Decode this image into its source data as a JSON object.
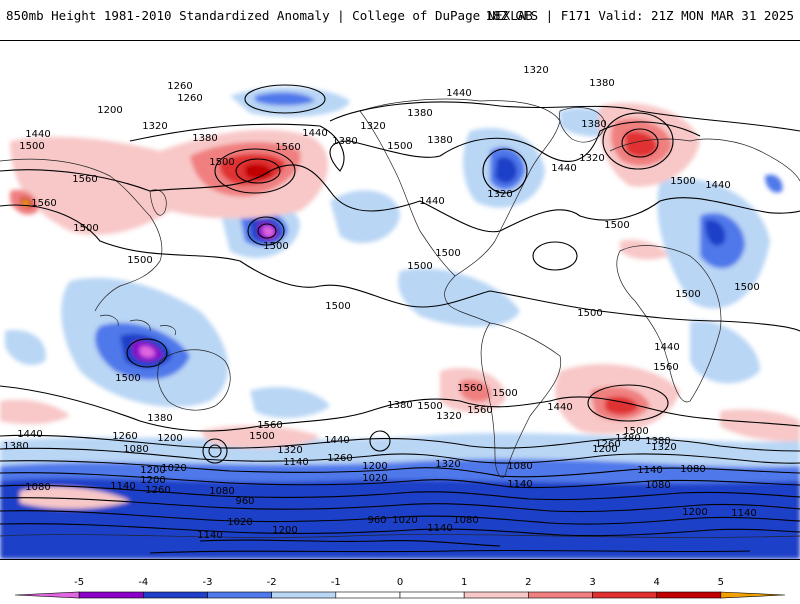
{
  "header": {
    "title_left": "850mb Height 1981-2010 Standardized Anomaly | College of DuPage NEXLAB",
    "title_right": "18Z GFS | F171 Valid: 21Z MON MAR 31 2025"
  },
  "colors": {
    "neg5": "#e066e0",
    "neg4": "#8a00c8",
    "neg3": "#1f3fc8",
    "neg2": "#4f78ea",
    "neg1": "#b9d6f5",
    "pos1": "#f8c8c8",
    "pos2": "#f08080",
    "pos3": "#e03030",
    "pos4": "#c00000",
    "pos5": "#f0a000"
  },
  "colorbar": {
    "ticks": [
      "-5",
      "-4",
      "-3",
      "-2",
      "-1",
      "0",
      "1",
      "2",
      "3",
      "4",
      "5"
    ]
  },
  "contour_labels": [
    {
      "id": "c1",
      "text": "1320"
    },
    {
      "id": "c2",
      "text": "1380"
    },
    {
      "id": "c3",
      "text": "1260"
    },
    {
      "id": "c4",
      "text": "1260"
    },
    {
      "id": "c5",
      "text": "1200"
    },
    {
      "id": "c6",
      "text": "1320"
    },
    {
      "id": "c7",
      "text": "1380"
    },
    {
      "id": "c8",
      "text": "1440"
    },
    {
      "id": "c9",
      "text": "1500"
    },
    {
      "id": "c10",
      "text": "1560"
    },
    {
      "id": "c11",
      "text": "1500"
    },
    {
      "id": "c12",
      "text": "1440"
    },
    {
      "id": "c13",
      "text": "1380"
    },
    {
      "id": "c14",
      "text": "1320"
    },
    {
      "id": "c15",
      "text": "1380"
    },
    {
      "id": "c16",
      "text": "1440"
    },
    {
      "id": "c17",
      "text": "1380"
    },
    {
      "id": "c18",
      "text": "1320"
    },
    {
      "id": "c19",
      "text": "1380"
    },
    {
      "id": "c20",
      "text": "1440"
    },
    {
      "id": "c21",
      "text": "1320"
    },
    {
      "id": "c22",
      "text": "1440"
    },
    {
      "id": "c23",
      "text": "1500"
    },
    {
      "id": "c24",
      "text": "1440"
    },
    {
      "id": "c25",
      "text": "1560"
    },
    {
      "id": "c26",
      "text": "1560"
    },
    {
      "id": "c27",
      "text": "1500"
    },
    {
      "id": "c28",
      "text": "1500"
    },
    {
      "id": "c29",
      "text": "1500"
    },
    {
      "id": "c30",
      "text": "1500"
    },
    {
      "id": "c31",
      "text": "1500"
    },
    {
      "id": "c32",
      "text": "1500"
    },
    {
      "id": "c33",
      "text": "1500"
    },
    {
      "id": "c34",
      "text": "1500"
    },
    {
      "id": "c35",
      "text": "1500"
    },
    {
      "id": "c36",
      "text": "1500"
    },
    {
      "id": "c37",
      "text": "1560"
    },
    {
      "id": "c38",
      "text": "1500"
    },
    {
      "id": "c39",
      "text": "1500"
    },
    {
      "id": "c40",
      "text": "1380"
    },
    {
      "id": "c41",
      "text": "1440"
    },
    {
      "id": "c42",
      "text": "1320"
    },
    {
      "id": "c43",
      "text": "1380"
    },
    {
      "id": "c44",
      "text": "1500"
    },
    {
      "id": "c45",
      "text": "1560"
    },
    {
      "id": "c46",
      "text": "1440"
    },
    {
      "id": "c47",
      "text": "1380"
    },
    {
      "id": "c48",
      "text": "1500"
    },
    {
      "id": "c49",
      "text": "1560"
    },
    {
      "id": "c50",
      "text": "1500"
    },
    {
      "id": "c51",
      "text": "1440"
    },
    {
      "id": "c52",
      "text": "1380"
    },
    {
      "id": "c53",
      "text": "1320"
    },
    {
      "id": "c54",
      "text": "1260"
    },
    {
      "id": "c55",
      "text": "1200"
    },
    {
      "id": "c56",
      "text": "1140"
    },
    {
      "id": "c57",
      "text": "1080"
    },
    {
      "id": "c58",
      "text": "1260"
    },
    {
      "id": "c59",
      "text": "1200"
    },
    {
      "id": "c60",
      "text": "1080"
    },
    {
      "id": "c61",
      "text": "1020"
    },
    {
      "id": "c62",
      "text": "1200"
    },
    {
      "id": "c63",
      "text": "1140"
    },
    {
      "id": "c64",
      "text": "1260"
    },
    {
      "id": "c65",
      "text": "1080"
    },
    {
      "id": "c66",
      "text": "1320"
    },
    {
      "id": "c67",
      "text": "1260"
    },
    {
      "id": "c68",
      "text": "1200"
    },
    {
      "id": "c69",
      "text": "1140"
    },
    {
      "id": "c70",
      "text": "1020"
    },
    {
      "id": "c71",
      "text": "1080"
    },
    {
      "id": "c72",
      "text": "1140"
    },
    {
      "id": "c73",
      "text": "960"
    },
    {
      "id": "c74",
      "text": "1080"
    },
    {
      "id": "c75",
      "text": "1020"
    },
    {
      "id": "c76",
      "text": "1140"
    },
    {
      "id": "c77",
      "text": "1200"
    },
    {
      "id": "c78",
      "text": "960"
    },
    {
      "id": "c79",
      "text": "1020"
    },
    {
      "id": "c80",
      "text": "1080"
    },
    {
      "id": "c81",
      "text": "1140"
    },
    {
      "id": "c82",
      "text": "1200"
    },
    {
      "id": "c83",
      "text": "1200"
    },
    {
      "id": "c84",
      "text": "1140"
    },
    {
      "id": "c85",
      "text": "1080"
    },
    {
      "id": "c86",
      "text": "1320"
    },
    {
      "id": "c87",
      "text": "1380"
    },
    {
      "id": "c88",
      "text": "1440"
    },
    {
      "id": "c89",
      "text": "1500"
    },
    {
      "id": "c90",
      "text": "1560"
    }
  ]
}
